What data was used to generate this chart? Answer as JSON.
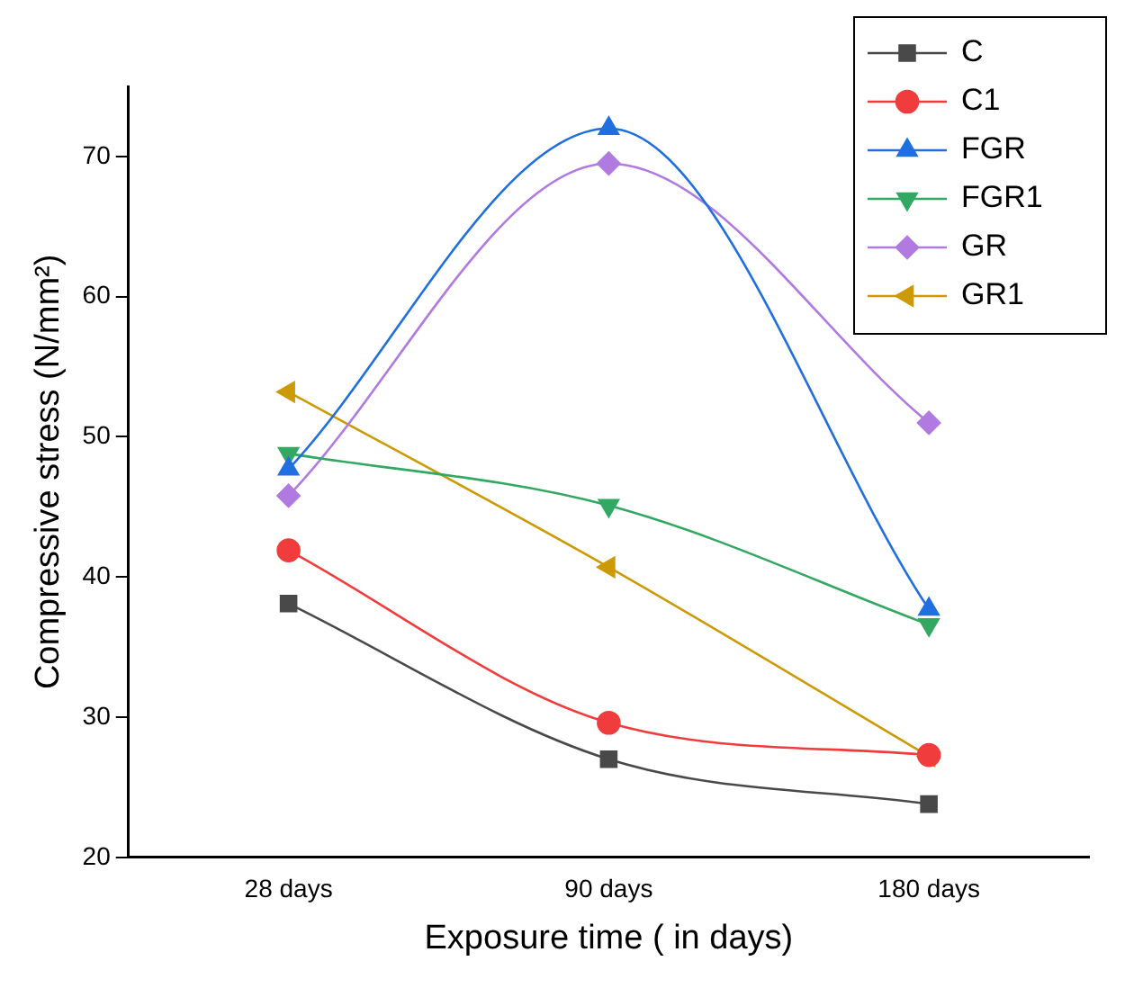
{
  "chart_data": {
    "type": "line",
    "xlabel": "Exposure time ( in days)",
    "ylabel": "Compressive stress (N/mm²)",
    "categories": [
      "28 days",
      "90 days",
      "180 days"
    ],
    "ylim": [
      20,
      75
    ],
    "yticks": [
      20,
      30,
      40,
      50,
      60,
      70
    ],
    "grid": false,
    "legend": "top right",
    "series": [
      {
        "name": "C",
        "color": "#494949",
        "marker": "square",
        "values": [
          38.1,
          27.0,
          23.8
        ]
      },
      {
        "name": "C1",
        "color": "#f03c3c",
        "marker": "circle",
        "values": [
          41.9,
          29.6,
          27.3
        ]
      },
      {
        "name": "FGR",
        "color": "#1f6fe0",
        "marker": "triangle",
        "values": [
          47.7,
          72.0,
          37.7
        ]
      },
      {
        "name": "FGR1",
        "color": "#32a862",
        "marker": "triangle-down",
        "values": [
          48.8,
          45.1,
          36.6
        ]
      },
      {
        "name": "GR",
        "color": "#b07ae0",
        "marker": "diamond",
        "values": [
          45.8,
          69.5,
          51.0
        ]
      },
      {
        "name": "GR1",
        "color": "#cc9a06",
        "marker": "triangle-left",
        "values": [
          53.2,
          40.7,
          27.2
        ]
      }
    ]
  }
}
